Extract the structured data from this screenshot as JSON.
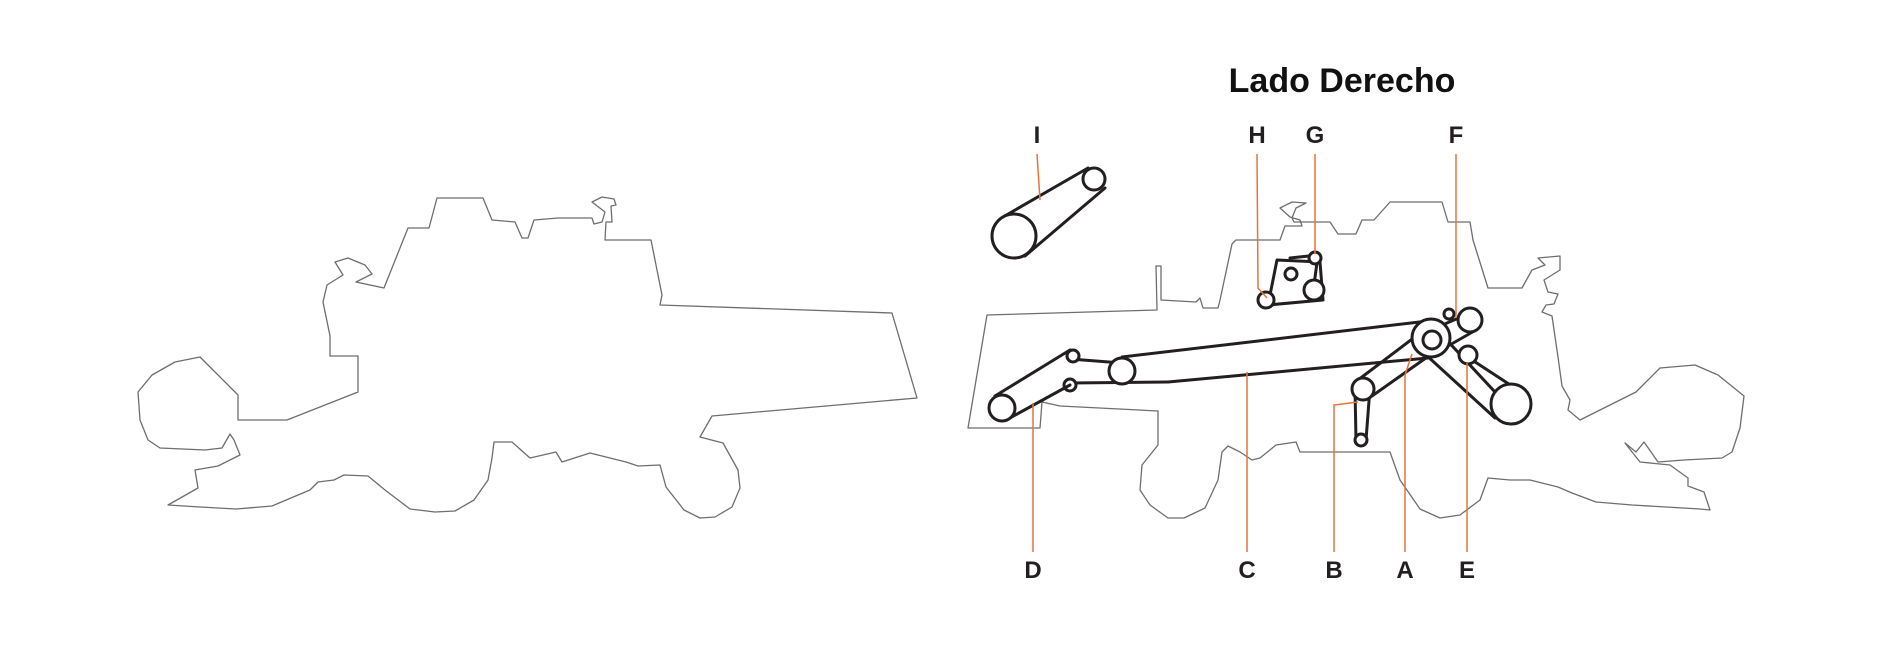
{
  "title": "Lado Derecho",
  "labels": {
    "I": "I",
    "H": "H",
    "G": "G",
    "F": "F",
    "D": "D",
    "C": "C",
    "B": "B",
    "A": "A",
    "E": "E"
  },
  "colors": {
    "leader": "#e8733a",
    "belt": "#231f20",
    "outline": "#6e6e6e",
    "background": "#ffffff"
  }
}
